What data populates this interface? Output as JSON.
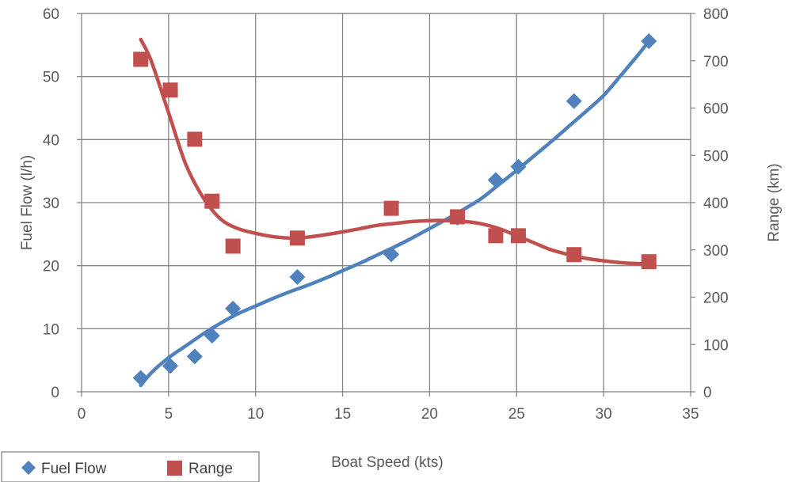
{
  "chart_data": {
    "type": "scatter",
    "title": "",
    "xlabel": "Boat Speed  (kts)",
    "ylabel": "Fuel Flow (l/h)",
    "y2label": "Range  (km)",
    "xlim": [
      0,
      35
    ],
    "ylim": [
      0,
      60
    ],
    "y2lim": [
      0,
      800
    ],
    "x_ticks": [
      0,
      5,
      10,
      15,
      20,
      25,
      30,
      35
    ],
    "y_ticks": [
      0,
      10,
      20,
      30,
      40,
      50,
      60
    ],
    "y2_ticks": [
      0,
      100,
      200,
      300,
      400,
      500,
      600,
      700,
      800
    ],
    "grid": true,
    "legend_position": "bottom-left",
    "series": [
      {
        "name": "Fuel Flow",
        "axis": "left",
        "marker": "diamond",
        "color": "#4F81BD",
        "trendline": "polynomial",
        "x": [
          3.4,
          5.1,
          6.5,
          7.5,
          8.7,
          12.4,
          17.8,
          21.6,
          23.8,
          25.1,
          28.3,
          32.6
        ],
        "y": [
          2.2,
          4.1,
          5.6,
          8.9,
          13.2,
          18.2,
          21.8,
          27.6,
          33.6,
          35.7,
          46.1,
          55.6
        ]
      },
      {
        "name": "Range",
        "axis": "right",
        "marker": "square",
        "color": "#C0504D",
        "trendline": "polynomial",
        "x": [
          3.4,
          5.1,
          6.5,
          7.5,
          8.7,
          12.4,
          17.8,
          21.6,
          23.8,
          25.1,
          28.3,
          32.6
        ],
        "y": [
          703,
          638,
          534,
          403,
          308,
          325,
          388,
          370,
          330,
          330,
          290,
          275
        ]
      }
    ],
    "trendlines": [
      {
        "series": "Fuel Flow",
        "x": [
          3.4,
          4,
          5,
          6,
          7,
          8,
          9,
          10,
          11,
          12,
          13,
          14,
          15,
          16,
          17,
          18,
          19,
          20,
          21,
          22,
          23,
          24,
          25,
          26,
          27,
          28,
          29,
          30,
          31,
          32,
          32.6
        ],
        "y": [
          1.0,
          3.0,
          5.4,
          7.3,
          9.2,
          10.9,
          12.4,
          13.6,
          14.8,
          15.9,
          16.9,
          18.0,
          19.2,
          20.4,
          21.7,
          23.0,
          24.4,
          25.9,
          27.4,
          29.0,
          30.7,
          32.9,
          35.1,
          37.4,
          39.7,
          42.1,
          44.5,
          47.0,
          50.2,
          53.5,
          55.6
        ]
      },
      {
        "series": "Range",
        "x": [
          3.4,
          4,
          5,
          6,
          7,
          8,
          9,
          10,
          11,
          12,
          13,
          14,
          15,
          16,
          17,
          18,
          19,
          20,
          21,
          22,
          23,
          24,
          25,
          26,
          27,
          28,
          29,
          30,
          31,
          32,
          32.6
        ],
        "y": [
          745,
          700,
          590,
          480,
          410,
          365,
          345,
          335,
          328,
          325,
          327,
          332,
          338,
          345,
          352,
          356,
          360,
          362,
          362,
          360,
          355,
          345,
          330,
          315,
          300,
          290,
          282,
          277,
          273,
          271,
          272
        ]
      }
    ]
  }
}
